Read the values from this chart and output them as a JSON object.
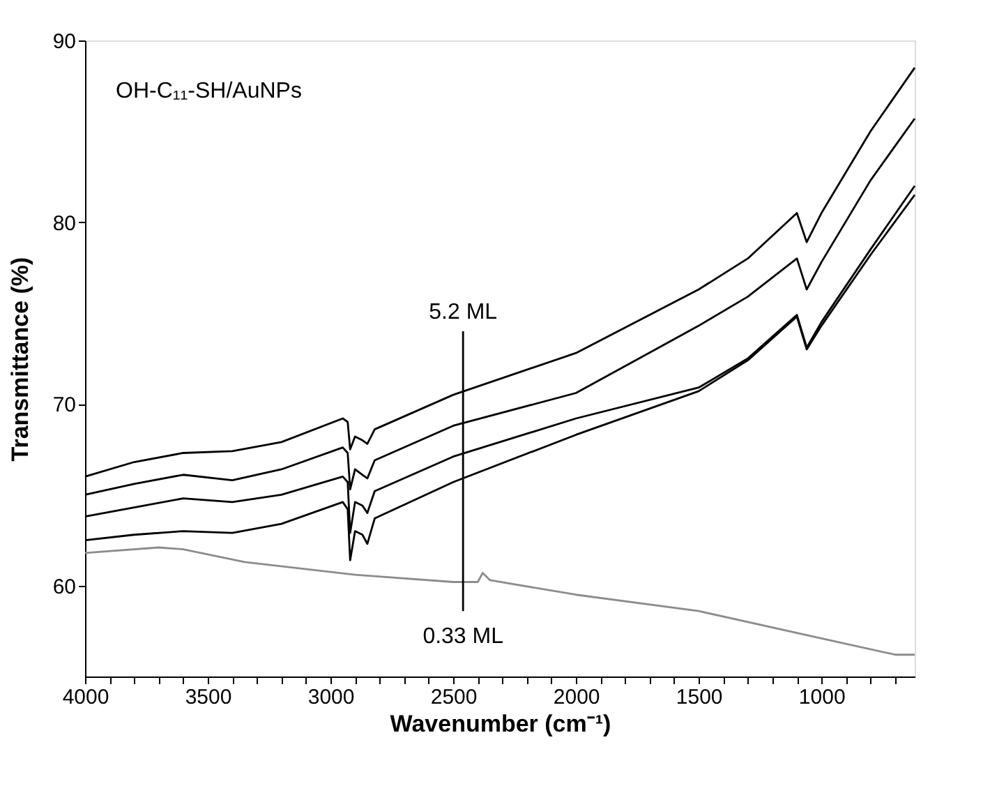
{
  "chart_data": {
    "type": "line",
    "xlabel": "Wavenumber (cm⁻¹)",
    "ylabel": "Transmittance (%)",
    "xlim": [
      4000,
      620
    ],
    "ylim": [
      55,
      90
    ],
    "xticks": [
      4000,
      {
        "value": 3900,
        "label": null
      },
      {
        "value": 3800,
        "label": null
      },
      {
        "value": 3700,
        "label": null
      },
      {
        "value": 3600,
        "label": null
      },
      3500,
      {
        "value": 3400,
        "label": null
      },
      {
        "value": 3300,
        "label": null
      },
      {
        "value": 3200,
        "label": null
      },
      {
        "value": 3100,
        "label": null
      },
      3000,
      {
        "value": 2900,
        "label": null
      },
      {
        "value": 2800,
        "label": null
      },
      {
        "value": 2700,
        "label": null
      },
      {
        "value": 2600,
        "label": null
      },
      2500,
      {
        "value": 2400,
        "label": null
      },
      {
        "value": 2300,
        "label": null
      },
      {
        "value": 2200,
        "label": null
      },
      {
        "value": 2100,
        "label": null
      },
      2000,
      {
        "value": 1900,
        "label": null
      },
      {
        "value": 1800,
        "label": null
      },
      {
        "value": 1700,
        "label": null
      },
      {
        "value": 1600,
        "label": null
      },
      1500,
      {
        "value": 1400,
        "label": null
      },
      {
        "value": 1300,
        "label": null
      },
      {
        "value": 1200,
        "label": null
      },
      {
        "value": 1100,
        "label": null
      },
      1000,
      {
        "value": 900,
        "label": null
      },
      {
        "value": 800,
        "label": null
      },
      {
        "value": 700,
        "label": null
      }
    ],
    "yticks": [
      60,
      70,
      80,
      90
    ],
    "grid": false,
    "series": [
      {
        "color": "#000000",
        "x": [
          4000,
          3800,
          3600,
          3400,
          3200,
          2950,
          2930,
          2920,
          2900,
          2870,
          2850,
          2820,
          2500,
          2000,
          1500,
          1300,
          1100,
          1060,
          1000,
          800,
          620
        ],
        "values": [
          66.0,
          66.8,
          67.3,
          67.4,
          67.9,
          69.2,
          69.0,
          67.5,
          68.2,
          68.0,
          67.8,
          68.6,
          70.5,
          72.8,
          76.3,
          78.0,
          80.5,
          78.9,
          80.5,
          85.0,
          88.5
        ]
      },
      {
        "color": "#000000",
        "x": [
          4000,
          3800,
          3600,
          3400,
          3200,
          2950,
          2930,
          2920,
          2900,
          2870,
          2850,
          2820,
          2500,
          2000,
          1500,
          1300,
          1100,
          1060,
          1000,
          800,
          620
        ],
        "values": [
          65.0,
          65.6,
          66.1,
          65.8,
          66.4,
          67.6,
          67.3,
          65.3,
          66.4,
          66.1,
          65.9,
          66.9,
          68.8,
          70.6,
          74.3,
          75.9,
          78.0,
          76.3,
          77.8,
          82.3,
          85.7
        ]
      },
      {
        "color": "#000000",
        "x": [
          4000,
          3800,
          3600,
          3400,
          3200,
          2950,
          2930,
          2920,
          2900,
          2870,
          2850,
          2820,
          2500,
          2000,
          1500,
          1300,
          1100,
          1060,
          1000,
          800,
          620
        ],
        "values": [
          63.8,
          64.3,
          64.8,
          64.6,
          65.0,
          66.0,
          65.7,
          62.9,
          64.6,
          64.4,
          64.0,
          65.2,
          67.1,
          69.2,
          70.9,
          72.5,
          74.9,
          73.1,
          74.5,
          78.5,
          82.0
        ]
      },
      {
        "color": "#000000",
        "x": [
          4000,
          3800,
          3600,
          3400,
          3200,
          2950,
          2930,
          2920,
          2900,
          2870,
          2850,
          2820,
          2500,
          2000,
          1500,
          1300,
          1100,
          1060,
          1000,
          800,
          620
        ],
        "values": [
          62.5,
          62.8,
          63.0,
          62.9,
          63.4,
          64.6,
          64.2,
          61.4,
          63.0,
          62.8,
          62.3,
          63.7,
          65.7,
          68.3,
          70.7,
          72.4,
          74.8,
          73.0,
          74.3,
          78.2,
          81.5
        ]
      },
      {
        "color": "#8c8c8c",
        "x": [
          4000,
          3700,
          3600,
          3350,
          2900,
          2500,
          2400,
          2380,
          2350,
          2000,
          1500,
          1000,
          700,
          620
        ],
        "values": [
          61.8,
          62.1,
          62.0,
          61.3,
          60.6,
          60.2,
          60.2,
          60.7,
          60.3,
          59.5,
          58.6,
          57.1,
          56.2,
          56.2
        ]
      },
      {
        "color": "#000000",
        "x": [
          2460,
          2460
        ],
        "values": [
          74.0,
          58.6
        ]
      }
    ],
    "annotations": [
      "OH-C₁₁-SH/AuNPs",
      "5.2 ML",
      "0.33 ML"
    ]
  }
}
